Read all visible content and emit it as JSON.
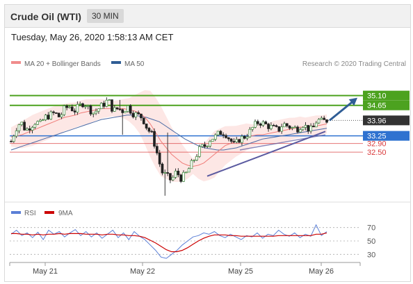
{
  "header": {
    "title": "Crude Oil (WTI)",
    "timeframe": "30 MIN"
  },
  "timestamp": "Tuesday, May 26, 2020 1:58:13 AM CET",
  "legend": {
    "items": [
      {
        "name": "MA 20 + Bollinger Bands",
        "color": "#f08c8c"
      },
      {
        "name": "MA 50",
        "color": "#2f5d95"
      }
    ],
    "credit": "Research © 2020 Trading Central"
  },
  "rsi_legend": {
    "items": [
      {
        "name": "RSI",
        "color": "#5b7fd6"
      },
      {
        "name": "9MA",
        "color": "#cc0000"
      }
    ]
  },
  "colors": {
    "resistance": "#4ca21f",
    "pivot": "#2f72d0",
    "support": "#d9383a",
    "price_tag": "#333333",
    "bollinger_fill": "#fde3e1",
    "ma20": "#f07c78",
    "ma50": "#4a6aa5",
    "arrow": "#2f5d95",
    "rsi": "#5b7fd6",
    "rsi_ma": "#cc0000"
  },
  "chart_data": [
    {
      "type": "candlestick",
      "title": "Crude Oil (WTI)",
      "ylim": [
        30.4,
        36.3
      ],
      "x_ticks": [
        "May 21",
        "May 22",
        "May 25",
        "May 26"
      ],
      "last_price": 33.96,
      "levels": [
        {
          "value": 35.1,
          "label": "35.10",
          "role": "resistance"
        },
        {
          "value": 34.65,
          "label": "34.65",
          "role": "resistance"
        },
        {
          "value": 33.96,
          "label": "33.96",
          "role": "last"
        },
        {
          "value": 33.25,
          "label": "33.25",
          "role": "pivot"
        },
        {
          "value": 32.9,
          "label": "32.90",
          "role": "support"
        },
        {
          "value": 32.5,
          "label": "32.50",
          "role": "support"
        }
      ],
      "close_path": [
        33.0,
        33.6,
        33.9,
        33.5,
        33.7,
        33.9,
        33.8,
        34.1,
        34.2,
        34.3,
        34.1,
        34.5,
        34.6,
        34.4,
        34.6,
        34.8,
        34.5,
        34.3,
        34.5,
        34.7,
        34.9,
        34.4,
        34.5,
        34.4,
        34.6,
        34.3,
        34.2,
        34.1,
        33.6,
        33.3,
        32.5,
        31.6,
        31.4,
        31.2,
        31.6,
        31.3,
        31.5,
        31.9,
        32.3,
        32.7,
        32.8,
        33.1,
        33.2,
        33.4,
        33.4,
        33.1,
        32.8,
        33.1,
        33.2,
        33.4,
        33.7,
        33.9,
        33.8,
        33.7,
        33.6,
        33.5,
        33.8,
        33.7,
        33.6,
        33.6,
        33.8,
        33.6,
        33.5,
        34.0,
        33.9,
        33.96
      ],
      "ma20": [
        33.2,
        33.25,
        33.3,
        33.4,
        33.5,
        33.6,
        33.7,
        33.8,
        33.9,
        34.0,
        34.1,
        34.15,
        34.2,
        34.3,
        34.35,
        34.4,
        34.45,
        34.5,
        34.5,
        34.5,
        34.5,
        34.5,
        34.45,
        34.4,
        34.3,
        34.1,
        33.8,
        33.4,
        33.0,
        32.7,
        32.4,
        32.2,
        32.0,
        31.9,
        31.85,
        31.9,
        32.0,
        32.2,
        32.4,
        32.6,
        32.8,
        32.9,
        33.0,
        33.1,
        33.2,
        33.25,
        33.3,
        33.3,
        33.35,
        33.4,
        33.45,
        33.5,
        33.55,
        33.6,
        33.65,
        33.65,
        33.7,
        33.7,
        33.75,
        33.8
      ],
      "ma50": [
        32.6,
        32.7,
        32.8,
        32.9,
        33.0,
        33.1,
        33.2,
        33.3,
        33.4,
        33.5,
        33.6,
        33.7,
        33.8,
        33.9,
        34.0,
        34.05,
        34.1,
        34.15,
        34.2,
        34.2,
        34.15,
        34.1,
        34.0,
        33.9,
        33.7,
        33.5,
        33.3,
        33.1,
        32.95,
        32.8,
        32.7,
        32.65,
        32.6,
        32.6,
        32.65,
        32.7,
        32.8,
        32.9,
        33.0,
        33.1,
        33.15,
        33.2,
        33.25,
        33.3,
        33.35,
        33.4,
        33.45,
        33.5,
        33.55,
        33.6
      ]
    },
    {
      "type": "line",
      "title": "RSI",
      "ylim": [
        20,
        80
      ],
      "y_ticks": [
        70,
        50,
        30
      ],
      "series": [
        {
          "name": "RSI",
          "values": [
            60,
            66,
            58,
            62,
            55,
            63,
            52,
            66,
            60,
            64,
            56,
            62,
            67,
            58,
            64,
            56,
            62,
            54,
            60,
            66,
            55,
            62,
            52,
            64,
            57,
            52,
            44,
            36,
            26,
            24,
            30,
            36,
            44,
            50,
            56,
            58,
            62,
            60,
            64,
            58,
            55,
            60,
            56,
            52,
            58,
            56,
            62,
            54,
            60,
            58,
            66,
            60,
            57,
            62,
            55,
            60,
            57,
            74,
            58,
            64
          ]
        },
        {
          "name": "9MA",
          "values": [
            61,
            61,
            60,
            60,
            59,
            60,
            59,
            60,
            60,
            61,
            60,
            61,
            61,
            61,
            60,
            60,
            60,
            59,
            60,
            60,
            59,
            59,
            58,
            58,
            57,
            55,
            51,
            47,
            42,
            37,
            34,
            34,
            36,
            40,
            45,
            50,
            54,
            57,
            59,
            59,
            59,
            58,
            58,
            57,
            57,
            57,
            57,
            57,
            57,
            57,
            58,
            58,
            58,
            58,
            58,
            58,
            58,
            60,
            60,
            62
          ]
        }
      ]
    }
  ]
}
